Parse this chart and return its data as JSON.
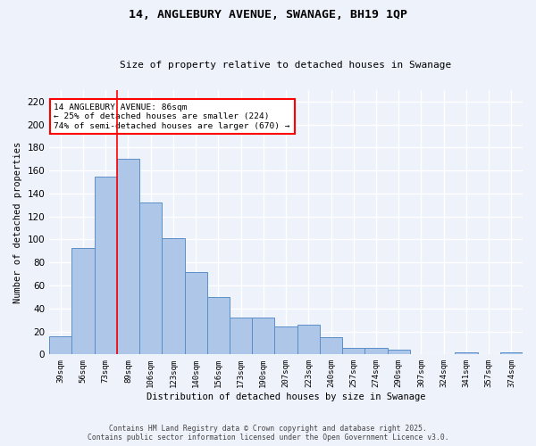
{
  "title": "14, ANGLEBURY AVENUE, SWANAGE, BH19 1QP",
  "subtitle": "Size of property relative to detached houses in Swanage",
  "xlabel": "Distribution of detached houses by size in Swanage",
  "ylabel": "Number of detached properties",
  "categories": [
    "39sqm",
    "56sqm",
    "73sqm",
    "89sqm",
    "106sqm",
    "123sqm",
    "140sqm",
    "156sqm",
    "173sqm",
    "190sqm",
    "207sqm",
    "223sqm",
    "240sqm",
    "257sqm",
    "274sqm",
    "290sqm",
    "307sqm",
    "324sqm",
    "341sqm",
    "357sqm",
    "374sqm"
  ],
  "values": [
    16,
    93,
    155,
    170,
    132,
    101,
    72,
    50,
    32,
    32,
    24,
    26,
    15,
    6,
    6,
    4,
    0,
    0,
    2,
    0,
    2
  ],
  "bar_color": "#aec6e8",
  "bar_edge_color": "#5b8fc9",
  "red_line_x": 2.5,
  "annotation_text": "14 ANGLEBURY AVENUE: 86sqm\n← 25% of detached houses are smaller (224)\n74% of semi-detached houses are larger (670) →",
  "annotation_box_color": "white",
  "annotation_box_edge_color": "red",
  "ylim": [
    0,
    230
  ],
  "yticks": [
    0,
    20,
    40,
    60,
    80,
    100,
    120,
    140,
    160,
    180,
    200,
    220
  ],
  "background_color": "#eef2fb",
  "grid_color": "white",
  "footnote1": "Contains HM Land Registry data © Crown copyright and database right 2025.",
  "footnote2": "Contains public sector information licensed under the Open Government Licence v3.0."
}
